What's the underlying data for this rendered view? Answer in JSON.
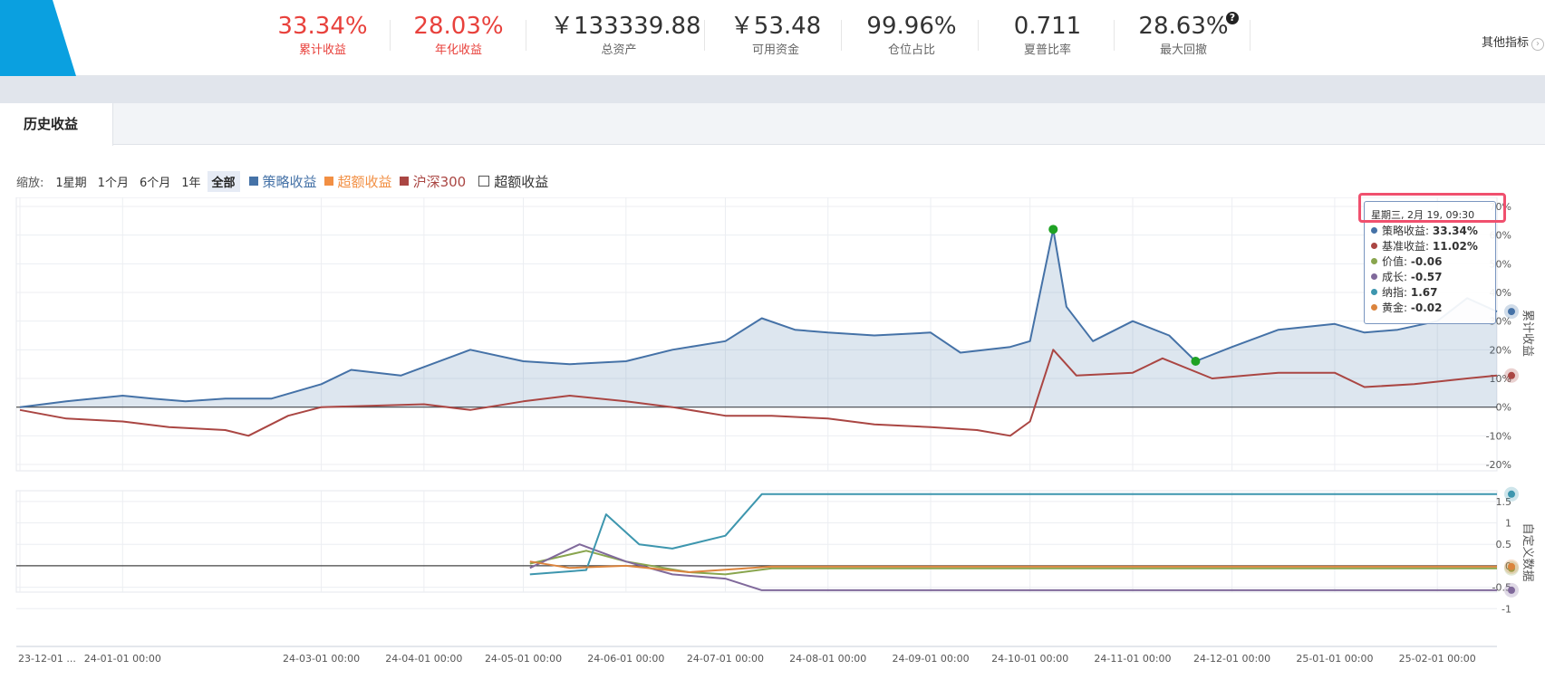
{
  "metrics": [
    {
      "value": "33.34%",
      "label": "累计收益",
      "red": true
    },
    {
      "value": "28.03%",
      "label": "年化收益",
      "red": true
    },
    {
      "value": "￥133339.88",
      "label": "总资产",
      "red": false
    },
    {
      "value": "￥53.48",
      "label": "可用资金",
      "red": false
    },
    {
      "value": "99.96%",
      "label": "仓位占比",
      "red": false
    },
    {
      "value": "0.711",
      "label": "夏普比率",
      "red": false
    },
    {
      "value": "28.63%",
      "label": "最大回撤",
      "red": false
    }
  ],
  "help_icon": "question-circle-icon",
  "other_metrics_label": "其他指标",
  "tab_label": "历史收益",
  "zoom": {
    "label": "缩放:",
    "buttons": [
      "1星期",
      "1个月",
      "6个月",
      "1年",
      "全部"
    ],
    "active": "全部"
  },
  "legend": [
    {
      "label": "策略收益",
      "color": "#4572a7"
    },
    {
      "label": "超额收益",
      "color": "#f28f43"
    },
    {
      "label": "沪深300",
      "color": "#aa4643"
    }
  ],
  "legend_checkbox_label": "超额收益",
  "tooltip": {
    "date": "星期三, 2月 19, 09:30",
    "rows": [
      {
        "label": "策略收益",
        "value": "33.34%",
        "color": "#4572a7"
      },
      {
        "label": "基准收益",
        "value": "11.02%",
        "color": "#aa4643"
      },
      {
        "label": "价值",
        "value": "-0.06",
        "color": "#89a54e"
      },
      {
        "label": "成长",
        "value": "-0.57",
        "color": "#80699b"
      },
      {
        "label": "纳指",
        "value": "1.67",
        "color": "#3d96ae"
      },
      {
        "label": "黄金",
        "value": "-0.02",
        "color": "#db843d"
      }
    ]
  },
  "chart_data": [
    {
      "type": "area",
      "title": "",
      "ylabel": "累计收益",
      "y_tick_labels": [
        "-20%",
        "-10%",
        "0%",
        "10%",
        "20%",
        "30%",
        "40%",
        "50%",
        "60%",
        "70%"
      ],
      "ylim": [
        -20,
        70
      ],
      "x_tick_labels": [
        "23-12-01 ...",
        "24-01-01 00:00",
        "24-03-01 00:00",
        "24-04-01 00:00",
        "24-05-01 00:00",
        "24-06-01 00:00",
        "24-07-01 00:00",
        "24-08-01 00:00",
        "24-09-01 00:00",
        "24-10-01 00:00",
        "24-11-01 00:00",
        "24-12-01 00:00",
        "25-01-01 00:00",
        "25-02-01 00:00"
      ],
      "series": [
        {
          "name": "策略收益",
          "points": [
            [
              "2023-12-01",
              0
            ],
            [
              "2023-12-15",
              2
            ],
            [
              "2024-01-01",
              4
            ],
            [
              "2024-01-10",
              3
            ],
            [
              "2024-01-20",
              2
            ],
            [
              "2024-02-01",
              3
            ],
            [
              "2024-02-15",
              3
            ],
            [
              "2024-03-01",
              8
            ],
            [
              "2024-03-10",
              13
            ],
            [
              "2024-03-25",
              11
            ],
            [
              "2024-04-01",
              14
            ],
            [
              "2024-04-15",
              20
            ],
            [
              "2024-05-01",
              16
            ],
            [
              "2024-05-15",
              15
            ],
            [
              "2024-06-01",
              16
            ],
            [
              "2024-06-15",
              20
            ],
            [
              "2024-07-01",
              23
            ],
            [
              "2024-07-12",
              31
            ],
            [
              "2024-07-22",
              27
            ],
            [
              "2024-08-01",
              26
            ],
            [
              "2024-08-15",
              25
            ],
            [
              "2024-09-01",
              26
            ],
            [
              "2024-09-10",
              19
            ],
            [
              "2024-09-25",
              21
            ],
            [
              "2024-10-01",
              23
            ],
            [
              "2024-10-08",
              62
            ],
            [
              "2024-10-12",
              35
            ],
            [
              "2024-10-20",
              23
            ],
            [
              "2024-11-01",
              30
            ],
            [
              "2024-11-12",
              25
            ],
            [
              "2024-11-20",
              16
            ],
            [
              "2024-12-01",
              21
            ],
            [
              "2024-12-15",
              27
            ],
            [
              "2025-01-01",
              29
            ],
            [
              "2025-01-10",
              26
            ],
            [
              "2025-01-20",
              27
            ],
            [
              "2025-02-01",
              30
            ],
            [
              "2025-02-10",
              38
            ],
            [
              "2025-02-19",
              33.34
            ]
          ]
        },
        {
          "name": "基准收益",
          "points": [
            [
              "2023-12-01",
              -1
            ],
            [
              "2023-12-15",
              -4
            ],
            [
              "2024-01-01",
              -5
            ],
            [
              "2024-01-15",
              -7
            ],
            [
              "2024-02-01",
              -8
            ],
            [
              "2024-02-08",
              -10
            ],
            [
              "2024-02-20",
              -3
            ],
            [
              "2024-03-01",
              0
            ],
            [
              "2024-04-01",
              1
            ],
            [
              "2024-04-15",
              -1
            ],
            [
              "2024-05-01",
              2
            ],
            [
              "2024-05-15",
              4
            ],
            [
              "2024-06-01",
              2
            ],
            [
              "2024-06-15",
              0
            ],
            [
              "2024-07-01",
              -3
            ],
            [
              "2024-07-15",
              -3
            ],
            [
              "2024-08-01",
              -4
            ],
            [
              "2024-08-15",
              -6
            ],
            [
              "2024-09-01",
              -7
            ],
            [
              "2024-09-15",
              -8
            ],
            [
              "2024-09-25",
              -10
            ],
            [
              "2024-10-01",
              -5
            ],
            [
              "2024-10-08",
              20
            ],
            [
              "2024-10-15",
              11
            ],
            [
              "2024-11-01",
              12
            ],
            [
              "2024-11-10",
              17
            ],
            [
              "2024-11-25",
              10
            ],
            [
              "2024-12-15",
              12
            ],
            [
              "2025-01-01",
              12
            ],
            [
              "2025-01-10",
              7
            ],
            [
              "2025-01-25",
              8
            ],
            [
              "2025-02-10",
              10
            ],
            [
              "2025-02-19",
              11.02
            ]
          ]
        }
      ],
      "markers": [
        {
          "x": "2024-10-08",
          "y": 62,
          "label": "max"
        },
        {
          "x": "2024-11-20",
          "y": 16,
          "label": "min"
        }
      ]
    },
    {
      "type": "line",
      "ylabel": "自定义数据",
      "y_tick_labels": [
        "-1",
        "-0.5",
        "0",
        "0.5",
        "1",
        "1.5"
      ],
      "ylim": [
        -1.1,
        1.75
      ],
      "series": [
        {
          "name": "价值",
          "points": [
            [
              "2024-05-03",
              0.05
            ],
            [
              "2024-05-20",
              0.35
            ],
            [
              "2024-06-01",
              0.1
            ],
            [
              "2024-06-20",
              -0.15
            ],
            [
              "2024-07-01",
              -0.2
            ],
            [
              "2024-07-15",
              -0.06
            ],
            [
              "2025-02-19",
              -0.06
            ]
          ]
        },
        {
          "name": "成长",
          "points": [
            [
              "2024-05-03",
              -0.05
            ],
            [
              "2024-05-18",
              0.5
            ],
            [
              "2024-06-01",
              0.1
            ],
            [
              "2024-06-15",
              -0.2
            ],
            [
              "2024-07-01",
              -0.3
            ],
            [
              "2024-07-12",
              -0.57
            ],
            [
              "2025-02-19",
              -0.57
            ]
          ]
        },
        {
          "name": "纳指",
          "points": [
            [
              "2024-05-03",
              -0.2
            ],
            [
              "2024-05-20",
              -0.1
            ],
            [
              "2024-05-26",
              1.2
            ],
            [
              "2024-06-05",
              0.5
            ],
            [
              "2024-06-15",
              0.4
            ],
            [
              "2024-07-01",
              0.7
            ],
            [
              "2024-07-12",
              1.67
            ],
            [
              "2025-02-19",
              1.67
            ]
          ]
        },
        {
          "name": "黄金",
          "points": [
            [
              "2024-05-03",
              0.1
            ],
            [
              "2024-05-15",
              -0.05
            ],
            [
              "2024-06-01",
              0.0
            ],
            [
              "2024-06-20",
              -0.15
            ],
            [
              "2024-07-15",
              -0.02
            ],
            [
              "2025-02-19",
              -0.02
            ]
          ]
        }
      ]
    }
  ]
}
